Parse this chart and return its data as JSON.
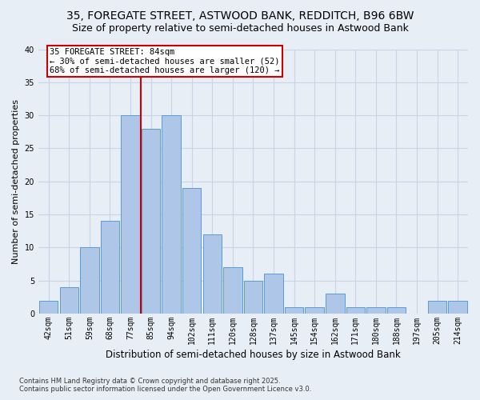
{
  "title_line1": "35, FOREGATE STREET, ASTWOOD BANK, REDDITCH, B96 6BW",
  "title_line2": "Size of property relative to semi-detached houses in Astwood Bank",
  "xlabel": "Distribution of semi-detached houses by size in Astwood Bank",
  "ylabel": "Number of semi-detached properties",
  "footer_line1": "Contains HM Land Registry data © Crown copyright and database right 2025.",
  "footer_line2": "Contains public sector information licensed under the Open Government Licence v3.0.",
  "bin_labels": [
    "42sqm",
    "51sqm",
    "59sqm",
    "68sqm",
    "77sqm",
    "85sqm",
    "94sqm",
    "102sqm",
    "111sqm",
    "120sqm",
    "128sqm",
    "137sqm",
    "145sqm",
    "154sqm",
    "162sqm",
    "171sqm",
    "180sqm",
    "188sqm",
    "197sqm",
    "205sqm",
    "214sqm"
  ],
  "bar_values": [
    2,
    4,
    10,
    14,
    30,
    28,
    30,
    19,
    12,
    7,
    5,
    6,
    1,
    1,
    3,
    1,
    1,
    1,
    0,
    2,
    2
  ],
  "bar_color": "#aec6e8",
  "bar_edge_color": "#5b9bd5",
  "subject_label": "35 FOREGATE STREET: 84sqm",
  "subject_pct_smaller": 30,
  "subject_n_smaller": 52,
  "subject_pct_larger": 68,
  "subject_n_larger": 120,
  "vline_color": "#cc0000",
  "ylim": [
    0,
    40
  ],
  "yticks": [
    0,
    5,
    10,
    15,
    20,
    25,
    30,
    35,
    40
  ],
  "grid_color": "#c8d4e4",
  "bg_color": "#e8eef6",
  "plot_bg_color": "#e8eef6",
  "title_fontsize": 10,
  "subtitle_fontsize": 9,
  "ylabel_fontsize": 8,
  "xlabel_fontsize": 8.5,
  "tick_fontsize": 7,
  "footer_fontsize": 6,
  "annot_fontsize": 7.5
}
